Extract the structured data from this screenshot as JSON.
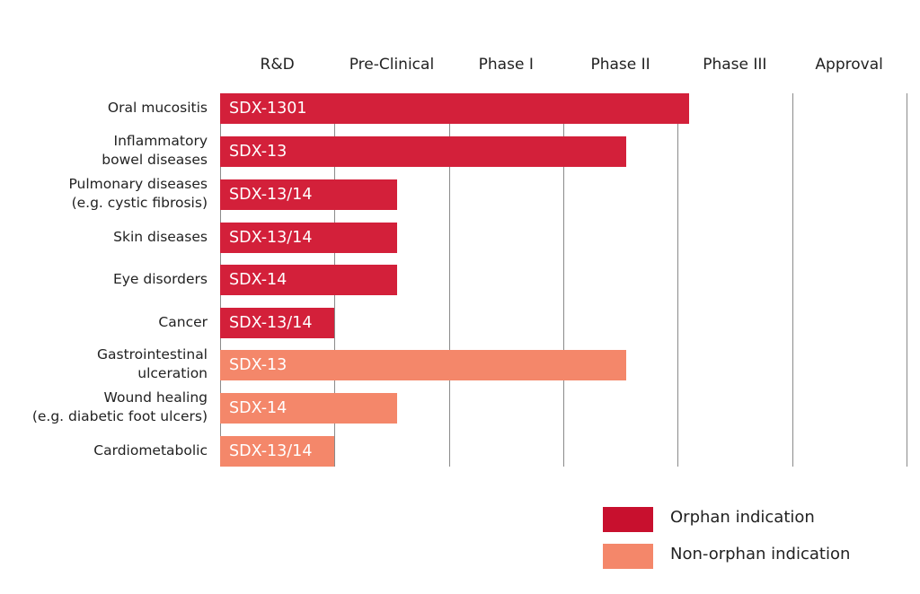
{
  "chart_data": {
    "type": "bar",
    "orientation": "horizontal",
    "stages": [
      "R&D",
      "Pre-Clinical",
      "Phase I",
      "Phase II",
      "Phase III",
      "Approval"
    ],
    "categories": [
      "Oral mucositis",
      "Inflammatory bowel diseases",
      "Pulmonary diseases (e.g. cystic fibrosis)",
      "Skin diseases",
      "Eye disorders",
      "Cancer",
      "Gastrointestinal ulceration",
      "Wound healing (e.g. diabetic foot ulcers)",
      "Cardiometabolic"
    ],
    "category_lines": [
      [
        "Oral mucositis"
      ],
      [
        "Inflammatory",
        "bowel diseases"
      ],
      [
        "Pulmonary diseases",
        "(e.g. cystic fibrosis)"
      ],
      [
        "Skin diseases"
      ],
      [
        "Eye disorders"
      ],
      [
        "Cancer"
      ],
      [
        "Gastrointestinal",
        "ulceration"
      ],
      [
        "Wound healing",
        "(e.g. diabetic foot ulcers)"
      ],
      [
        "Cardiometabolic"
      ]
    ],
    "bars": [
      {
        "label": "SDX-1301",
        "progress": 4.1,
        "indication": "orphan"
      },
      {
        "label": "SDX-13",
        "progress": 3.55,
        "indication": "orphan"
      },
      {
        "label": "SDX-13/14",
        "progress": 1.55,
        "indication": "orphan"
      },
      {
        "label": "SDX-13/14",
        "progress": 1.55,
        "indication": "orphan"
      },
      {
        "label": "SDX-14",
        "progress": 1.55,
        "indication": "orphan"
      },
      {
        "label": "SDX-13/14",
        "progress": 1.0,
        "indication": "orphan"
      },
      {
        "label": "SDX-13",
        "progress": 3.55,
        "indication": "non-orphan"
      },
      {
        "label": "SDX-14",
        "progress": 1.55,
        "indication": "non-orphan"
      },
      {
        "label": "SDX-13/14",
        "progress": 1.0,
        "indication": "non-orphan"
      }
    ],
    "progress_unit": "stages completed (0–6)",
    "xlim": [
      0,
      6
    ],
    "legend": {
      "placement": "bottom-right",
      "entries": [
        {
          "key": "orphan",
          "label": "Orphan indication",
          "color": "#c8102e"
        },
        {
          "key": "non-orphan",
          "label": "Non-orphan indication",
          "color": "#f4876a"
        }
      ]
    },
    "colors": {
      "orphan": "#d3203a",
      "non-orphan": "#f4876a",
      "grid": "#8a8a8a"
    }
  }
}
